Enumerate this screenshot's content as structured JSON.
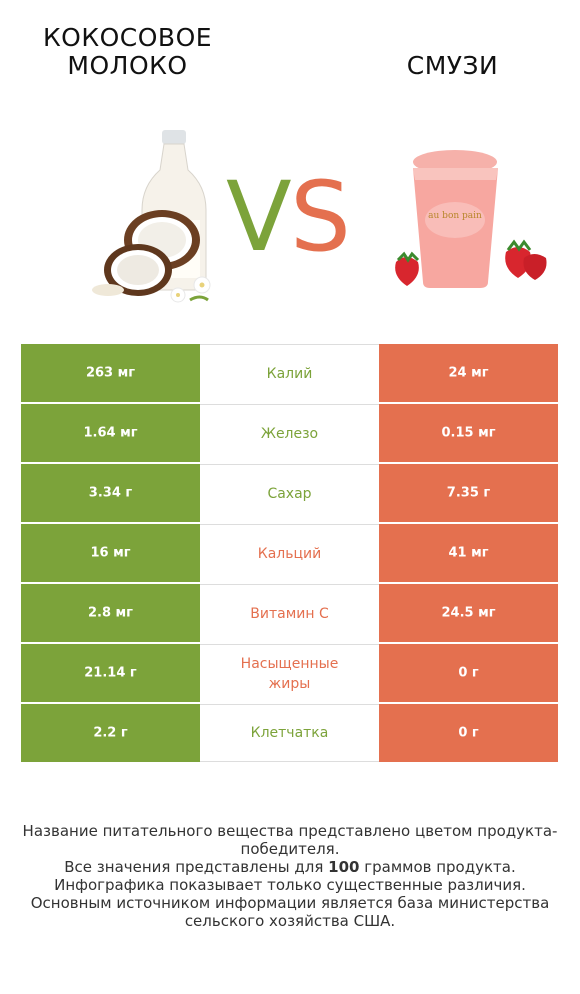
{
  "left_title": "Кокосовое\nмолоко",
  "right_title": "Смузи",
  "vs_text": "VS",
  "colors": {
    "winner_left": "#7ca33a",
    "winner_right": "#e4704f"
  },
  "chart_data": {
    "type": "table",
    "columns": [
      "Кокосовое молоко",
      "Смузи"
    ],
    "rows": [
      {
        "nutrient": "Калий",
        "left": "263 мг",
        "right": "24 мг",
        "winner": "left"
      },
      {
        "nutrient": "Железо",
        "left": "1.64 мг",
        "right": "0.15 мг",
        "winner": "left"
      },
      {
        "nutrient": "Сахар",
        "left": "3.34 г",
        "right": "7.35 г",
        "winner": "left"
      },
      {
        "nutrient": "Кальций",
        "left": "16 мг",
        "right": "41 мг",
        "winner": "right"
      },
      {
        "nutrient": "Витамин C",
        "left": "2.8 мг",
        "right": "24.5 мг",
        "winner": "right"
      },
      {
        "nutrient": "Насыщенные жиры",
        "left": "21.14 г",
        "right": "0 г",
        "winner": "right"
      },
      {
        "nutrient": "Клетчатка",
        "left": "2.2 г",
        "right": "0 г",
        "winner": "left"
      }
    ]
  },
  "footer": {
    "line1": "Название питательного вещества представлено цветом продукта-победителя.",
    "line2_pre": "Все значения представлены для ",
    "line2_bold": "100",
    "line2_post": " граммов продукта.",
    "line3": "Инфографика показывает только существенные различия.",
    "line4": "Основным источником информации является база министерства сельского хозяйства США."
  }
}
